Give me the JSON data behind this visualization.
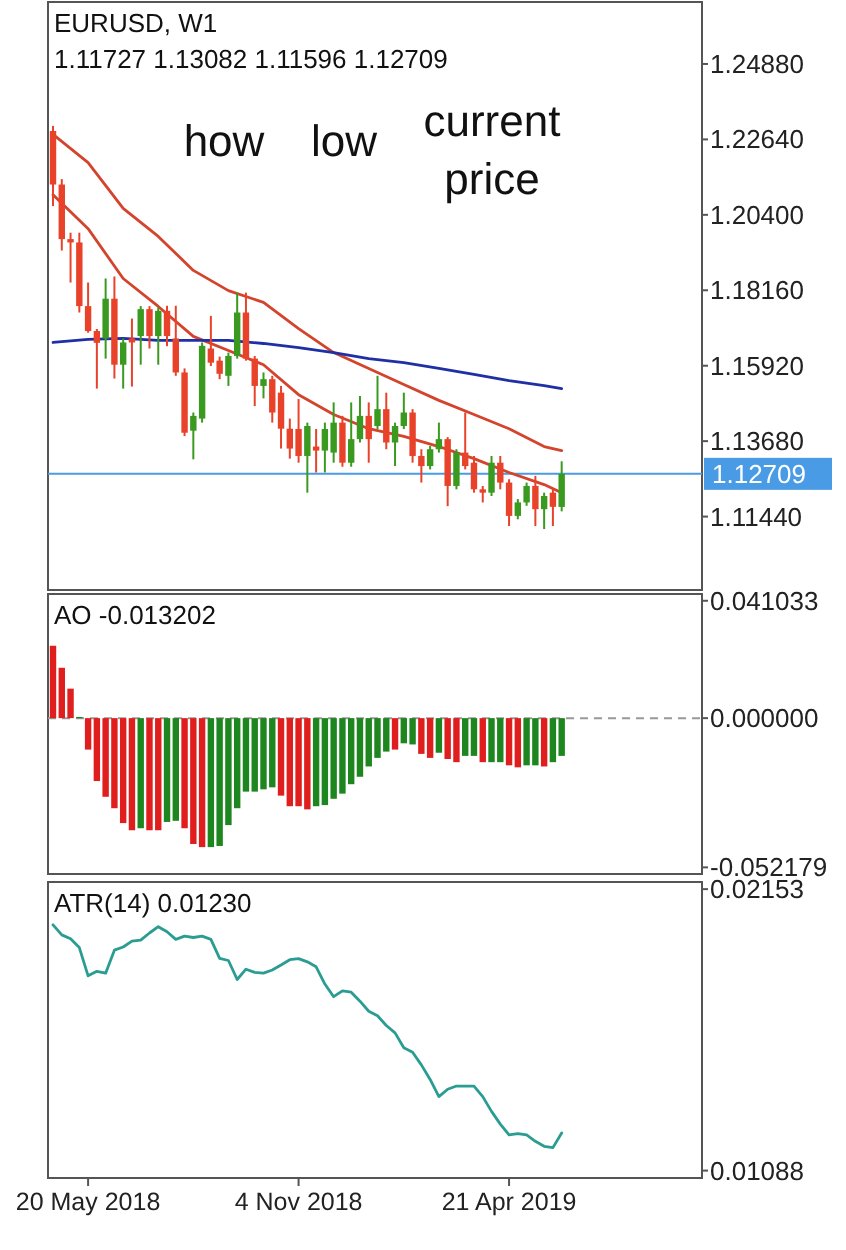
{
  "chart_data": [
    {
      "type": "candlestick",
      "title": "EURUSD, W1",
      "subtitle": "1.11727 1.13082 1.11596 1.12709",
      "annotations": [
        "how",
        "low",
        "current price"
      ],
      "x": [
        "2018-04-22",
        "2018-04-29",
        "2018-05-06",
        "2018-05-13",
        "2018-05-20",
        "2018-05-27",
        "2018-06-03",
        "2018-06-10",
        "2018-06-17",
        "2018-06-24",
        "2018-07-01",
        "2018-07-08",
        "2018-07-15",
        "2018-07-22",
        "2018-07-29",
        "2018-08-05",
        "2018-08-12",
        "2018-08-19",
        "2018-08-26",
        "2018-09-02",
        "2018-09-09",
        "2018-09-16",
        "2018-09-23",
        "2018-09-30",
        "2018-10-07",
        "2018-10-14",
        "2018-10-21",
        "2018-10-28",
        "2018-11-04",
        "2018-11-11",
        "2018-11-18",
        "2018-11-25",
        "2018-12-02",
        "2018-12-09",
        "2018-12-16",
        "2018-12-23",
        "2018-12-30",
        "2019-01-06",
        "2019-01-13",
        "2019-01-20",
        "2019-01-27",
        "2019-02-03",
        "2019-02-10",
        "2019-02-17",
        "2019-02-24",
        "2019-03-03",
        "2019-03-10",
        "2019-03-17",
        "2019-03-24",
        "2019-03-31",
        "2019-04-07",
        "2019-04-14",
        "2019-04-21",
        "2019-04-28",
        "2019-05-05",
        "2019-05-12",
        "2019-05-19",
        "2019-05-26",
        "2019-06-02"
      ],
      "ohlc": [
        [
          1.2289,
          1.2304,
          1.2066,
          1.213
        ],
        [
          1.213,
          1.2146,
          1.1934,
          1.1968
        ],
        [
          1.1968,
          1.1987,
          1.1839,
          1.1958
        ],
        [
          1.1958,
          1.1987,
          1.175,
          1.1769
        ],
        [
          1.1769,
          1.1839,
          1.169,
          1.1695
        ],
        [
          1.1695,
          1.1701,
          1.1524,
          1.166
        ],
        [
          1.1673,
          1.1851,
          1.1613,
          1.1791
        ],
        [
          1.1791,
          1.1857,
          1.1554,
          1.1595
        ],
        [
          1.1595,
          1.1673,
          1.1524,
          1.1661
        ],
        [
          1.1673,
          1.1732,
          1.153,
          1.1661
        ],
        [
          1.168,
          1.1769,
          1.1595,
          1.176
        ],
        [
          1.176,
          1.1769,
          1.1643,
          1.168
        ],
        [
          1.168,
          1.1765,
          1.1595,
          1.1755
        ],
        [
          1.1755,
          1.177,
          1.165,
          1.168
        ],
        [
          1.1673,
          1.177,
          1.1562,
          1.1572
        ],
        [
          1.1572,
          1.1584,
          1.1383,
          1.1393
        ],
        [
          1.1399,
          1.1453,
          1.1314,
          1.1443
        ],
        [
          1.1435,
          1.1661,
          1.1423,
          1.1651
        ],
        [
          1.1643,
          1.174,
          1.1591,
          1.1601
        ],
        [
          1.1607,
          1.1619,
          1.1552,
          1.1568
        ],
        [
          1.1562,
          1.1631,
          1.1532,
          1.1621
        ],
        [
          1.1621,
          1.1809,
          1.1613,
          1.175
        ],
        [
          1.175,
          1.1809,
          1.1607,
          1.1613
        ],
        [
          1.1613,
          1.1621,
          1.1472,
          1.1532
        ],
        [
          1.1532,
          1.1572,
          1.1495,
          1.1552
        ],
        [
          1.1552,
          1.1562,
          1.1423,
          1.1453
        ],
        [
          1.1512,
          1.1532,
          1.1346,
          1.1405
        ],
        [
          1.1405,
          1.1435,
          1.1316,
          1.1346
        ],
        [
          1.1404,
          1.1493,
          1.1304,
          1.1324
        ],
        [
          1.1324,
          1.1423,
          1.1215,
          1.1413
        ],
        [
          1.1352,
          1.1404,
          1.1275,
          1.134
        ],
        [
          1.134,
          1.1423,
          1.1275,
          1.1404
        ],
        [
          1.1334,
          1.1483,
          1.1304,
          1.1423
        ],
        [
          1.1423,
          1.1443,
          1.1292,
          1.1304
        ],
        [
          1.1304,
          1.1483,
          1.1292,
          1.1374
        ],
        [
          1.1374,
          1.1502,
          1.1364,
          1.1443
        ],
        [
          1.1443,
          1.1483,
          1.1304,
          1.1374
        ],
        [
          1.1413,
          1.1562,
          1.1404,
          1.1463
        ],
        [
          1.1463,
          1.1512,
          1.1344,
          1.1364
        ],
        [
          1.1364,
          1.1423,
          1.1294,
          1.1413
        ],
        [
          1.1413,
          1.1512,
          1.1404,
          1.1453
        ],
        [
          1.1453,
          1.1463,
          1.1304,
          1.1324
        ],
        [
          1.1324,
          1.1344,
          1.1245,
          1.1294
        ],
        [
          1.1294,
          1.1354,
          1.1284,
          1.1344
        ],
        [
          1.1344,
          1.1423,
          1.1334,
          1.1374
        ],
        [
          1.1374,
          1.138,
          1.1175,
          1.1235
        ],
        [
          1.1235,
          1.1344,
          1.1225,
          1.1334
        ],
        [
          1.1334,
          1.1453,
          1.1284,
          1.1294
        ],
        [
          1.1304,
          1.1324,
          1.1215,
          1.1225
        ],
        [
          1.1225,
          1.1235,
          1.1186,
          1.1215
        ],
        [
          1.1215,
          1.1324,
          1.1205,
          1.1304
        ],
        [
          1.1304,
          1.1324,
          1.1225,
          1.1245
        ],
        [
          1.1245,
          1.1255,
          1.1116,
          1.1146
        ],
        [
          1.1146,
          1.1196,
          1.1136,
          1.1186
        ],
        [
          1.1186,
          1.1245,
          1.1176,
          1.1235
        ],
        [
          1.1235,
          1.1265,
          1.1116,
          1.1166
        ],
        [
          1.1166,
          1.1215,
          1.1107,
          1.1205
        ],
        [
          1.1215,
          1.1225,
          1.1116,
          1.1173
        ],
        [
          1.11727,
          1.13082,
          1.11596,
          1.12709
        ]
      ],
      "series": [
        {
          "type": "line",
          "color": "#d4432b",
          "x": [
            "2018-04-22",
            "2018-05-20",
            "2018-06-17",
            "2018-07-15",
            "2018-08-12",
            "2018-09-09",
            "2018-10-07",
            "2018-11-04",
            "2018-12-02",
            "2018-12-30",
            "2019-01-27",
            "2019-02-24",
            "2019-03-24",
            "2019-04-21",
            "2019-05-19",
            "2019-06-02"
          ],
          "values": [
            1.2279,
            1.2195,
            1.2059,
            1.1976,
            1.1875,
            1.1815,
            1.178,
            1.1702,
            1.1631,
            1.1584,
            1.1536,
            1.1489,
            1.1447,
            1.1405,
            1.1352,
            1.134
          ]
        },
        {
          "type": "line",
          "color": "#d4432b",
          "x": [
            "2018-04-22",
            "2018-05-20",
            "2018-06-17",
            "2018-07-15",
            "2018-08-12",
            "2018-09-09",
            "2018-10-07",
            "2018-11-04",
            "2018-12-02",
            "2018-12-30",
            "2019-01-27",
            "2019-02-24",
            "2019-03-24",
            "2019-04-21",
            "2019-05-19",
            "2019-06-02"
          ],
          "values": [
            1.21,
            1.1999,
            1.1851,
            1.1768,
            1.1679,
            1.1637,
            1.1595,
            1.1506,
            1.1447,
            1.1405,
            1.1382,
            1.1352,
            1.1316,
            1.1275,
            1.1239,
            1.1215
          ]
        },
        {
          "type": "line",
          "color": "#1f2fa6",
          "x": [
            "2018-04-22",
            "2018-05-20",
            "2018-06-17",
            "2018-07-15",
            "2018-08-12",
            "2018-09-09",
            "2018-10-07",
            "2018-11-04",
            "2018-12-02",
            "2018-12-30",
            "2019-01-27",
            "2019-02-24",
            "2019-03-24",
            "2019-04-21",
            "2019-05-19",
            "2019-06-02"
          ],
          "values": [
            1.1661,
            1.167,
            1.1673,
            1.1667,
            1.1667,
            1.1667,
            1.1658,
            1.1646,
            1.1631,
            1.1613,
            1.1601,
            1.1584,
            1.1566,
            1.1548,
            1.1533,
            1.1524
          ]
        }
      ],
      "ylim": [
        1.0926,
        1.2672
      ],
      "yticks": [
        {
          "value": 1.2488,
          "label": "1.24880"
        },
        {
          "value": 1.2264,
          "label": "1.22640"
        },
        {
          "value": 1.204,
          "label": "1.20400"
        },
        {
          "value": 1.1816,
          "label": "1.18160"
        },
        {
          "value": 1.1592,
          "label": "1.15920"
        },
        {
          "value": 1.1368,
          "label": "1.13680"
        },
        {
          "value": 1.1144,
          "label": "1.11440"
        }
      ],
      "xlim": [
        "2018-04-18",
        "2019-09-22"
      ],
      "tick_labels": "y",
      "ref_lines": [
        {
          "axis": "y",
          "value": 1.12709,
          "label": "1.12709",
          "color": "#4a9be6"
        }
      ]
    },
    {
      "type": "bar",
      "title": "AO -0.013202",
      "x": [
        "2018-04-22",
        "2018-04-29",
        "2018-05-06",
        "2018-05-13",
        "2018-05-20",
        "2018-05-27",
        "2018-06-03",
        "2018-06-10",
        "2018-06-17",
        "2018-06-24",
        "2018-07-01",
        "2018-07-08",
        "2018-07-15",
        "2018-07-22",
        "2018-07-29",
        "2018-08-05",
        "2018-08-12",
        "2018-08-19",
        "2018-08-26",
        "2018-09-02",
        "2018-09-09",
        "2018-09-16",
        "2018-09-23",
        "2018-09-30",
        "2018-10-07",
        "2018-10-14",
        "2018-10-21",
        "2018-10-28",
        "2018-11-04",
        "2018-11-11",
        "2018-11-18",
        "2018-11-25",
        "2018-12-02",
        "2018-12-09",
        "2018-12-16",
        "2018-12-23",
        "2018-12-30",
        "2019-01-06",
        "2019-01-13",
        "2019-01-20",
        "2019-01-27",
        "2019-02-03",
        "2019-02-10",
        "2019-02-17",
        "2019-02-24",
        "2019-03-03",
        "2019-03-10",
        "2019-03-17",
        "2019-03-24",
        "2019-03-31",
        "2019-04-07",
        "2019-04-14",
        "2019-04-21",
        "2019-04-28",
        "2019-05-05",
        "2019-05-12",
        "2019-05-19",
        "2019-05-26",
        "2019-06-02"
      ],
      "values": [
        0.0253,
        0.0176,
        0.0103,
        0.0004,
        -0.011,
        -0.022,
        -0.0275,
        -0.0315,
        -0.0367,
        -0.0392,
        -0.0385,
        -0.0392,
        -0.0392,
        -0.0363,
        -0.0359,
        -0.0385,
        -0.044,
        -0.0451,
        -0.0451,
        -0.0447,
        -0.0374,
        -0.0315,
        -0.0257,
        -0.0257,
        -0.0249,
        -0.0242,
        -0.0271,
        -0.0308,
        -0.0308,
        -0.0319,
        -0.0308,
        -0.0304,
        -0.0282,
        -0.0264,
        -0.0231,
        -0.0205,
        -0.0169,
        -0.0139,
        -0.0117,
        -0.011,
        -0.0088,
        -0.0092,
        -0.0125,
        -0.0139,
        -0.0121,
        -0.0143,
        -0.0154,
        -0.0132,
        -0.0132,
        -0.0154,
        -0.0154,
        -0.0154,
        -0.0165,
        -0.0172,
        -0.0165,
        -0.0165,
        -0.0169,
        -0.0154,
        -0.013202
      ],
      "colors": [
        "#e01e1e",
        "#e01e1e",
        "#e01e1e",
        "#1e861e",
        "#e01e1e",
        "#e01e1e",
        "#e01e1e",
        "#e01e1e",
        "#e01e1e",
        "#e01e1e",
        "#1e861e",
        "#e01e1e",
        "#e01e1e",
        "#1e861e",
        "#1e861e",
        "#e01e1e",
        "#e01e1e",
        "#e01e1e",
        "#1e861e",
        "#1e861e",
        "#1e861e",
        "#1e861e",
        "#1e861e",
        "#1e861e",
        "#1e861e",
        "#1e861e",
        "#e01e1e",
        "#e01e1e",
        "#e01e1e",
        "#e01e1e",
        "#1e861e",
        "#1e861e",
        "#1e861e",
        "#1e861e",
        "#1e861e",
        "#1e861e",
        "#1e861e",
        "#1e861e",
        "#1e861e",
        "#e01e1e",
        "#1e861e",
        "#1e861e",
        "#e01e1e",
        "#e01e1e",
        "#1e861e",
        "#e01e1e",
        "#e01e1e",
        "#1e861e",
        "#1e861e",
        "#e01e1e",
        "#1e861e",
        "#1e861e",
        "#e01e1e",
        "#e01e1e",
        "#1e861e",
        "#1e861e",
        "#e01e1e",
        "#1e861e",
        "#1e861e"
      ],
      "ylim": [
        -0.0545,
        0.0434
      ],
      "yticks": [
        {
          "value": 0.041033,
          "label": "0.041033"
        },
        {
          "value": 0,
          "label": "0.000000"
        },
        {
          "value": -0.052179,
          "label": "-0.052179"
        }
      ],
      "xlim": [
        "2018-04-18",
        "2019-09-22"
      ],
      "tick_labels": "y",
      "ref_lines": [
        {
          "axis": "y",
          "value": 0,
          "color": "#999999",
          "line_style": "dashed"
        }
      ]
    },
    {
      "type": "line",
      "title": "ATR(14) 0.01230",
      "x": [
        "2018-04-22",
        "2018-04-29",
        "2018-05-06",
        "2018-05-13",
        "2018-05-20",
        "2018-05-27",
        "2018-06-03",
        "2018-06-10",
        "2018-06-17",
        "2018-06-24",
        "2018-07-01",
        "2018-07-08",
        "2018-07-15",
        "2018-07-22",
        "2018-07-29",
        "2018-08-05",
        "2018-08-12",
        "2018-08-19",
        "2018-08-26",
        "2018-09-02",
        "2018-09-09",
        "2018-09-16",
        "2018-09-23",
        "2018-09-30",
        "2018-10-07",
        "2018-10-14",
        "2018-10-21",
        "2018-10-28",
        "2018-11-04",
        "2018-11-11",
        "2018-11-18",
        "2018-11-25",
        "2018-12-02",
        "2018-12-09",
        "2018-12-16",
        "2018-12-23",
        "2018-12-30",
        "2019-01-06",
        "2019-01-13",
        "2019-01-20",
        "2019-01-27",
        "2019-02-03",
        "2019-02-10",
        "2019-02-17",
        "2019-02-24",
        "2019-03-03",
        "2019-03-10",
        "2019-03-17",
        "2019-03-24",
        "2019-03-31",
        "2019-04-07",
        "2019-04-14",
        "2019-04-21",
        "2019-04-28",
        "2019-05-05",
        "2019-05-12",
        "2019-05-19",
        "2019-05-26",
        "2019-06-02"
      ],
      "series": [
        {
          "color": "#2a9d92",
          "values": [
            0.02018,
            0.0198,
            0.01965,
            0.01932,
            0.01825,
            0.01842,
            0.01835,
            0.01922,
            0.01934,
            0.01956,
            0.0196,
            0.01987,
            0.02011,
            0.01992,
            0.01963,
            0.01975,
            0.0197,
            0.01975,
            0.01963,
            0.01891,
            0.01883,
            0.01811,
            0.0185,
            0.01838,
            0.01835,
            0.01847,
            0.01866,
            0.01886,
            0.0189,
            0.01878,
            0.01859,
            0.01794,
            0.01746,
            0.01768,
            0.01763,
            0.01729,
            0.01691,
            0.01674,
            0.01637,
            0.01609,
            0.01553,
            0.01536,
            0.01488,
            0.01433,
            0.01368,
            0.01396,
            0.01408,
            0.01408,
            0.01408,
            0.01368,
            0.01312,
            0.01264,
            0.01223,
            0.01228,
            0.01223,
            0.01199,
            0.0118,
            0.01175,
            0.0123
          ]
        }
      ],
      "ylim": [
        0.0106,
        0.0218
      ],
      "yticks": [
        {
          "value": 0.02153,
          "label": "0.02153"
        },
        {
          "value": 0.01088,
          "label": "0.01088"
        }
      ],
      "xlim": [
        "2018-04-18",
        "2019-09-22"
      ],
      "xticks": [
        {
          "value": "2018-05-20",
          "label": "20 May 2018"
        },
        {
          "value": "2018-11-04",
          "label": "4 Nov 2018"
        },
        {
          "value": "2019-04-21",
          "label": "21 Apr 2019"
        }
      ]
    }
  ]
}
